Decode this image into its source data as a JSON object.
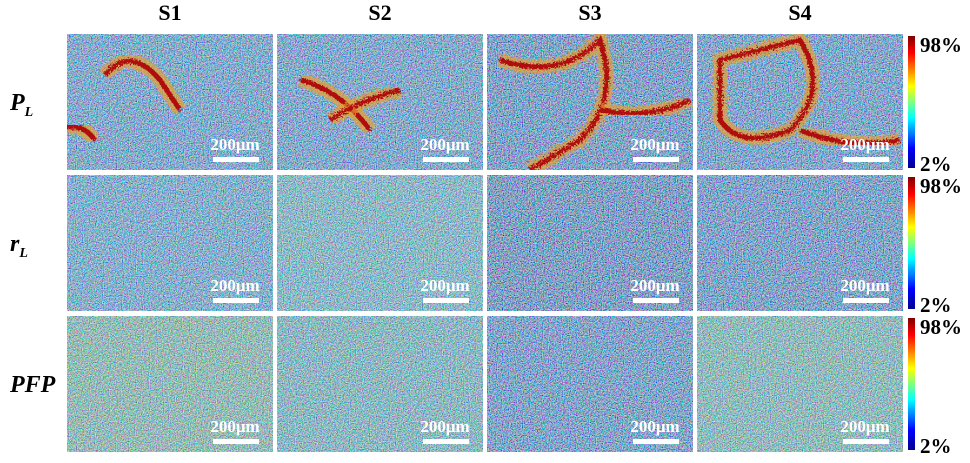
{
  "columns": [
    "S1",
    "S2",
    "S3",
    "S4"
  ],
  "rows": [
    {
      "label": "P",
      "subscript": "L"
    },
    {
      "label": "r",
      "subscript": "L"
    },
    {
      "label": "PFP"
    }
  ],
  "scale_bar": "200μm",
  "colorbar": {
    "max": "98%",
    "min": "2%"
  }
}
